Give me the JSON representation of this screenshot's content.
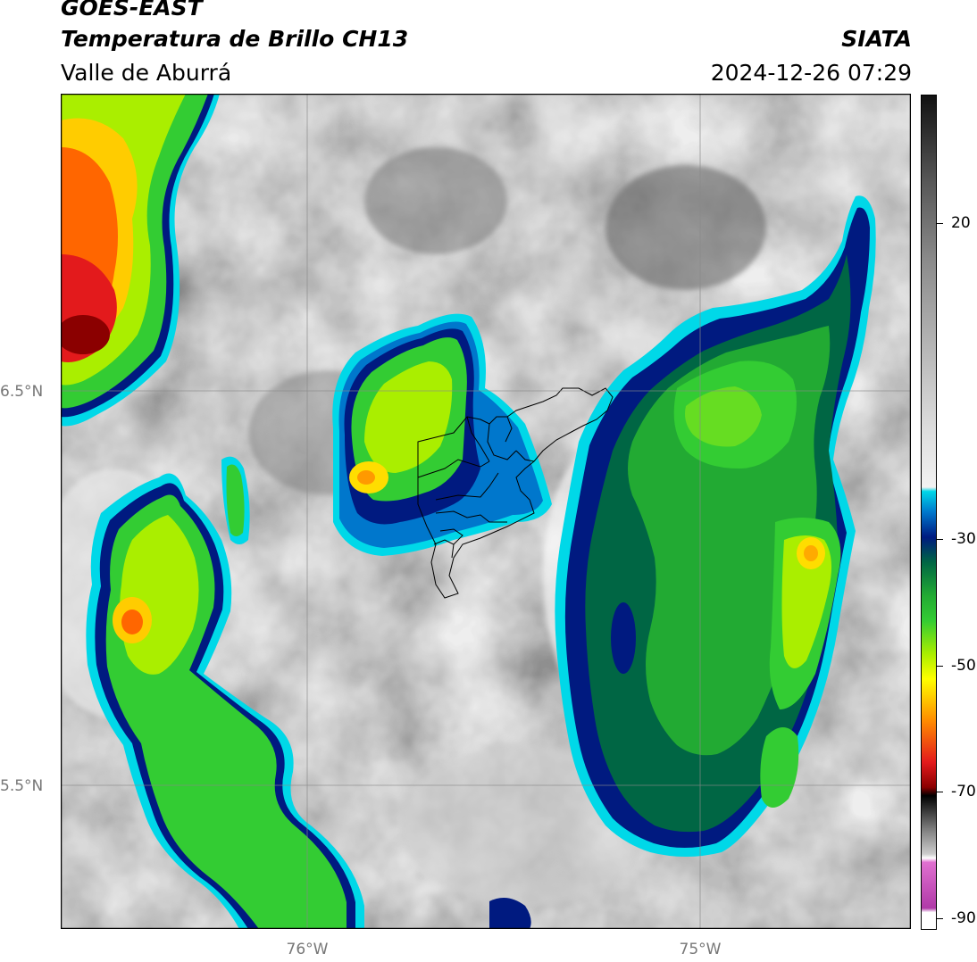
{
  "header": {
    "satellite": "GOES-EAST",
    "product": "Temperatura de Brillo CH13",
    "region": "Valle de Aburrá",
    "org": "SIATA",
    "datetime": "2024-12-26 07:29"
  },
  "map": {
    "lat_ticks": [
      {
        "label": "6.5°N",
        "lat": 6.5
      },
      {
        "label": "5.5°N",
        "lat": 5.5
      }
    ],
    "lon_ticks": [
      {
        "label": "76°W",
        "lon": -76.0
      },
      {
        "label": "75°W",
        "lon": -75.0
      }
    ],
    "extent": {
      "lon_min": -76.62,
      "lon_max": -74.47,
      "lat_min": 5.13,
      "lat_max": 7.25
    },
    "overlay": "municipal boundaries (black outline)"
  },
  "colorbar": {
    "ticks": [
      {
        "label": "20",
        "value": 20
      },
      {
        "label": "-30",
        "value": -30
      },
      {
        "label": "-50",
        "value": -50
      },
      {
        "label": "-70",
        "value": -70
      },
      {
        "label": "-90",
        "value": -90
      }
    ],
    "range": [
      -92,
      34
    ],
    "colors": {
      "magenta": "#b03aa8",
      "dark_gray": "#7d7d7d",
      "black": "#000000",
      "red": "#e31a1c",
      "orange": "#ff8c00",
      "yellow": "#ffff00",
      "green": "#33cc33",
      "dark_green": "#006644",
      "navy": "#001a80",
      "blue": "#0077cc",
      "cyan": "#00d8e8",
      "white": "#f2f2f2",
      "gray_dark_top": "#111111"
    }
  }
}
